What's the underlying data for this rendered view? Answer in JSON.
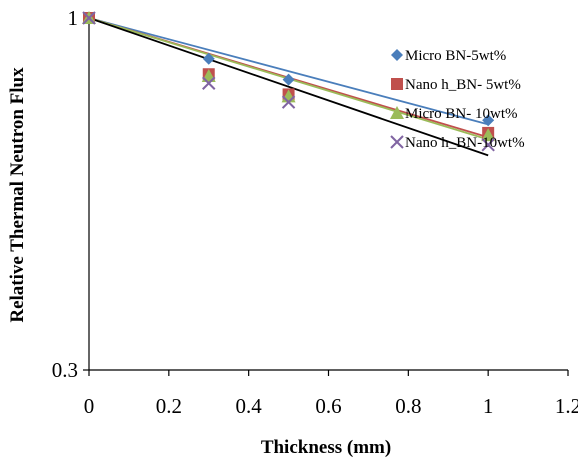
{
  "chart_data": {
    "type": "scatter",
    "title": "",
    "xlabel": "Thickness (mm)",
    "ylabel": "Relative Thermal Neutron Flux",
    "xlim": [
      0,
      1.2
    ],
    "ylim": [
      0.3,
      1
    ],
    "y_scale": "log",
    "x_ticks": [
      "0",
      "0.2",
      "0.4",
      "0.6",
      "0.8",
      "1",
      "1.2"
    ],
    "y_ticks": [
      "1",
      "0.3"
    ],
    "grid": false,
    "legend_position": "right",
    "series": [
      {
        "name": "Micro BN-5wt%",
        "marker": "diamond",
        "color": "#4a7ebb",
        "x": [
          0,
          0.3,
          0.5,
          1
        ],
        "y": [
          1,
          0.87,
          0.81,
          0.705
        ]
      },
      {
        "name": "Nano h_BN- 5wt%",
        "marker": "square",
        "color": "#c0504d",
        "x": [
          0,
          0.3,
          0.5,
          1
        ],
        "y": [
          1,
          0.825,
          0.77,
          0.675
        ]
      },
      {
        "name": "Micro BN- 10wt%",
        "marker": "triangle",
        "color": "#9bbb59",
        "x": [
          0,
          0.3,
          0.5,
          1
        ],
        "y": [
          1,
          0.82,
          0.765,
          0.67
        ]
      },
      {
        "name": "Nano h_BN-10wt%",
        "marker": "x",
        "color": "#8064a2",
        "x": [
          0,
          0.3,
          0.5,
          1
        ],
        "y": [
          1,
          0.8,
          0.75,
          0.648
        ]
      }
    ],
    "trendlines": [
      {
        "color": "#4a7ebb",
        "x": [
          0,
          1
        ],
        "y": [
          1,
          0.695
        ]
      },
      {
        "color": "#c0504d",
        "x": [
          0,
          1
        ],
        "y": [
          1,
          0.665
        ]
      },
      {
        "color": "#9bbb59",
        "x": [
          0,
          1
        ],
        "y": [
          1,
          0.66
        ]
      },
      {
        "color": "#000000",
        "x": [
          0,
          1
        ],
        "y": [
          1,
          0.625
        ]
      }
    ]
  }
}
